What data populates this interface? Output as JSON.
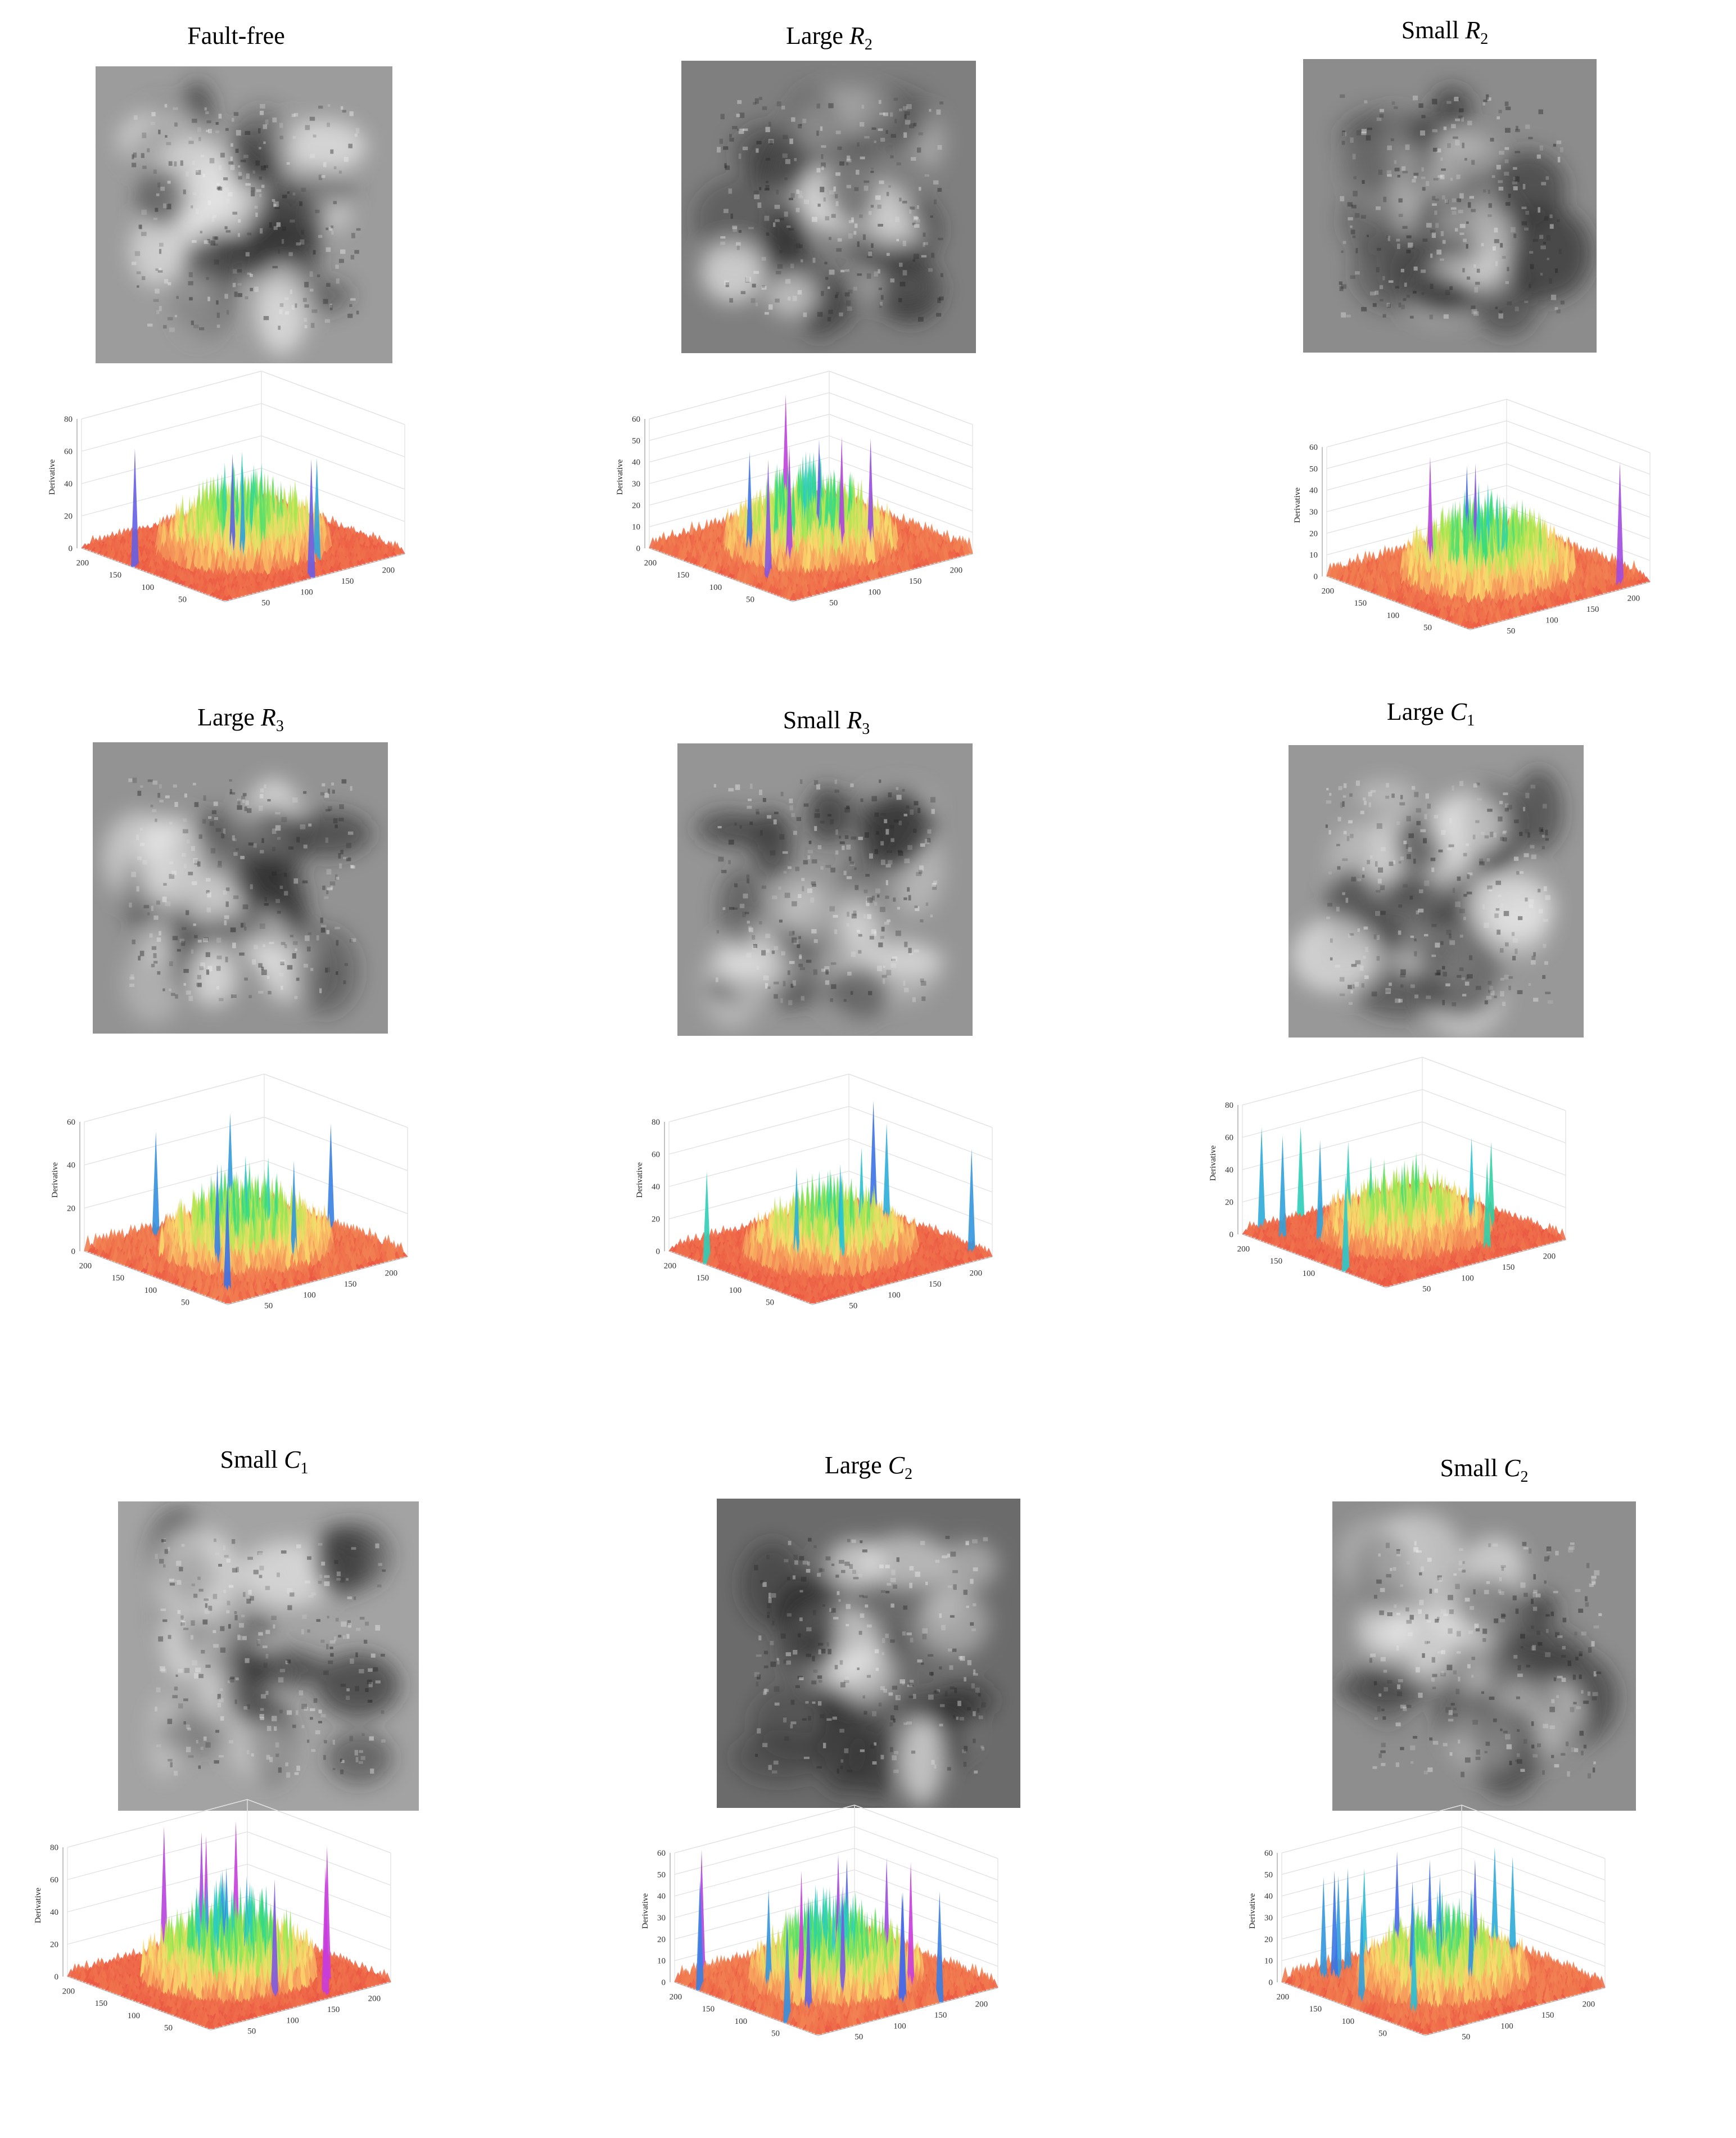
{
  "figure": {
    "panels": [
      {
        "id": "fault-free",
        "title_main": "Fault-free",
        "title_sym": "",
        "title_sub": "",
        "zlabel": "Derivative",
        "zticks": [
          0,
          20,
          40,
          60,
          80
        ],
        "xticks": [
          50,
          100,
          150,
          200
        ],
        "yticks": [
          50,
          100,
          150,
          200
        ],
        "map_tone": "#9c9c9c"
      },
      {
        "id": "large-r2",
        "title_main": "Large ",
        "title_sym": "R",
        "title_sub": "2",
        "zlabel": "Derivative",
        "zticks": [
          0,
          10,
          20,
          30,
          40,
          50,
          60
        ],
        "xticks": [
          50,
          100,
          150,
          200
        ],
        "yticks": [
          50,
          100,
          150,
          200
        ],
        "map_tone": "#7f7f7f"
      },
      {
        "id": "small-r2",
        "title_main": "Small ",
        "title_sym": "R",
        "title_sub": "2",
        "zlabel": "Derivative",
        "zticks": [
          0,
          10,
          20,
          30,
          40,
          50,
          60
        ],
        "xticks": [
          50,
          100,
          150,
          200
        ],
        "yticks": [
          50,
          100,
          150,
          200
        ],
        "map_tone": "#8c8c8c"
      },
      {
        "id": "large-r3",
        "title_main": "Large ",
        "title_sym": "R",
        "title_sub": "3",
        "zlabel": "Derivative",
        "zticks": [
          0,
          20,
          40,
          60
        ],
        "xticks": [
          50,
          100,
          150,
          200
        ],
        "yticks": [
          50,
          100,
          150,
          200
        ],
        "map_tone": "#939393"
      },
      {
        "id": "small-r3",
        "title_main": "Small ",
        "title_sym": "R",
        "title_sub": "3",
        "zlabel": "Derivative",
        "zticks": [
          0,
          20,
          40,
          60,
          80
        ],
        "xticks": [
          50,
          100,
          150,
          200
        ],
        "yticks": [
          50,
          100,
          150,
          200
        ],
        "map_tone": "#959595"
      },
      {
        "id": "large-c1",
        "title_main": "Large ",
        "title_sym": "C",
        "title_sub": "1",
        "zlabel": "Derivative",
        "zticks": [
          0,
          20,
          40,
          60,
          80
        ],
        "xticks": [
          50,
          100,
          150,
          200
        ],
        "yticks": [
          100,
          150,
          200
        ],
        "map_tone": "#989898"
      },
      {
        "id": "small-c1",
        "title_main": "Small ",
        "title_sym": "C",
        "title_sub": "1",
        "zlabel": "Derivative",
        "zticks": [
          0,
          20,
          40,
          60,
          80
        ],
        "xticks": [
          50,
          100,
          150,
          200
        ],
        "yticks": [
          50,
          100,
          150,
          200
        ],
        "map_tone": "#a3a3a3"
      },
      {
        "id": "large-c2",
        "title_main": "Large ",
        "title_sym": "C",
        "title_sub": "2",
        "zlabel": "Derivative",
        "zticks": [
          0,
          10,
          20,
          30,
          40,
          50,
          60
        ],
        "xticks": [
          50,
          100,
          150,
          200
        ],
        "yticks": [
          50,
          100,
          150,
          200
        ],
        "map_tone": "#6b6b6b"
      },
      {
        "id": "small-c2",
        "title_main": "Small ",
        "title_sym": "C",
        "title_sub": "2",
        "zlabel": "Derivative",
        "zticks": [
          0,
          10,
          20,
          30,
          40,
          50,
          60
        ],
        "xticks": [
          50,
          100,
          150,
          200
        ],
        "yticks": [
          50,
          100,
          150,
          200
        ],
        "map_tone": "#8e8e8e"
      }
    ]
  },
  "chart_data": [
    {
      "type": "heatmap",
      "title": "Fault-free",
      "zlabel": "Derivative",
      "zlim": [
        0,
        80
      ],
      "xlim": [
        0,
        220
      ],
      "ylim": [
        0,
        220
      ],
      "peak": 78,
      "note_colormap": "red-yellow-green-blue-magenta"
    },
    {
      "type": "heatmap",
      "title": "Large R2",
      "zlabel": "Derivative",
      "zlim": [
        0,
        60
      ],
      "xlim": [
        0,
        220
      ],
      "ylim": [
        0,
        220
      ],
      "peak": 60
    },
    {
      "type": "heatmap",
      "title": "Small R2",
      "zlabel": "Derivative",
      "zlim": [
        0,
        60
      ],
      "xlim": [
        0,
        220
      ],
      "ylim": [
        0,
        220
      ],
      "peak": 60
    },
    {
      "type": "heatmap",
      "title": "Large R3",
      "zlabel": "Derivative",
      "zlim": [
        0,
        60
      ],
      "xlim": [
        0,
        220
      ],
      "ylim": [
        0,
        220
      ],
      "peak": 58
    },
    {
      "type": "heatmap",
      "title": "Small R3",
      "zlabel": "Derivative",
      "zlim": [
        0,
        80
      ],
      "xlim": [
        0,
        220
      ],
      "ylim": [
        0,
        220
      ],
      "peak": 70
    },
    {
      "type": "heatmap",
      "title": "Large C1",
      "zlabel": "Derivative",
      "zlim": [
        0,
        80
      ],
      "xlim": [
        0,
        220
      ],
      "ylim": [
        0,
        220
      ],
      "peak": 65
    },
    {
      "type": "heatmap",
      "title": "Small C1",
      "zlabel": "Derivative",
      "zlim": [
        0,
        80
      ],
      "xlim": [
        0,
        220
      ],
      "ylim": [
        0,
        220
      ],
      "peak": 92
    },
    {
      "type": "heatmap",
      "title": "Large C2",
      "zlabel": "Derivative",
      "zlim": [
        0,
        60
      ],
      "xlim": [
        0,
        220
      ],
      "ylim": [
        0,
        220
      ],
      "peak": 62
    },
    {
      "type": "heatmap",
      "title": "Small C2",
      "zlabel": "Derivative",
      "zlim": [
        0,
        60
      ],
      "xlim": [
        0,
        220
      ],
      "ylim": [
        0,
        220
      ],
      "peak": 54
    }
  ]
}
